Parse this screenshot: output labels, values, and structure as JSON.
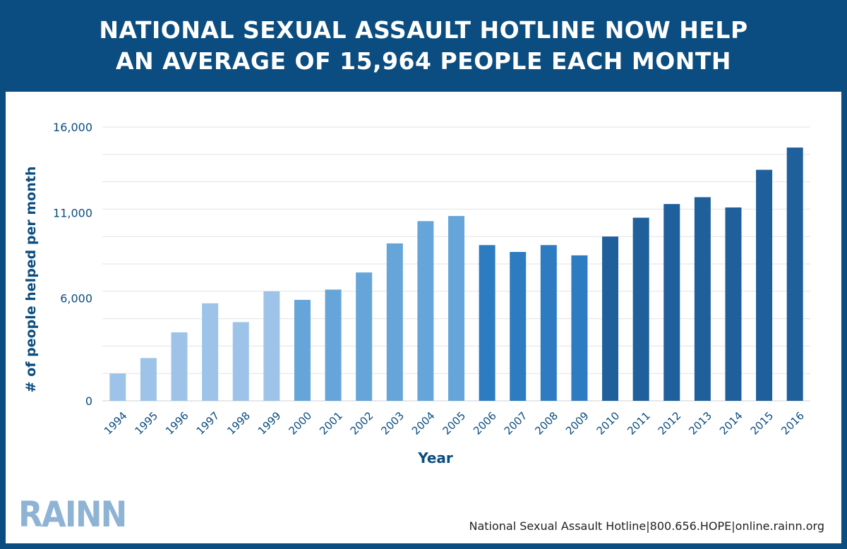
{
  "header": {
    "title_line1": "NATIONAL SEXUAL ASSAULT HOTLINE NOW HELP",
    "title_line2": "AN AVERAGE OF 15,964 PEOPLE EACH MONTH"
  },
  "footer": {
    "logo": "RAINN",
    "contact": "National Sexual Assault Hotline|800.656.HOPE|online.rainn.org"
  },
  "colors": {
    "header_bg": "#0b4d80",
    "axis_text": "#0b4d80",
    "bar_light": "#9dc4e8",
    "bar_mid": "#65a5da",
    "bar_strong": "#2d7cc2",
    "bar_dark": "#1f5f9c"
  },
  "chart_data": {
    "type": "bar",
    "title": "NATIONAL SEXUAL ASSAULT HOTLINE NOW HELP AN AVERAGE OF 15,964 PEOPLE EACH MONTH",
    "xlabel": "Year",
    "ylabel": "# of people helped per month",
    "ylim": [
      0,
      16000
    ],
    "yticks": [
      0,
      6000,
      11000,
      16000
    ],
    "ytick_labels": [
      "0",
      "6,000",
      "11,000",
      "16,000"
    ],
    "grid": true,
    "categories": [
      "1994",
      "1995",
      "1996",
      "1997",
      "1998",
      "1999",
      "2000",
      "2001",
      "2002",
      "2003",
      "2004",
      "2005",
      "2006",
      "2007",
      "2008",
      "2009",
      "2010",
      "2011",
      "2012",
      "2013",
      "2014",
      "2015",
      "2016"
    ],
    "values": [
      1600,
      2500,
      4000,
      5700,
      4600,
      6400,
      5900,
      6500,
      7500,
      9200,
      10500,
      10800,
      9100,
      8700,
      9100,
      8500,
      9600,
      10700,
      11500,
      11900,
      11300,
      13500,
      14800
    ],
    "bar_color_groups": [
      "light",
      "light",
      "light",
      "light",
      "light",
      "light",
      "mid",
      "mid",
      "mid",
      "mid",
      "mid",
      "mid",
      "strong",
      "strong",
      "strong",
      "strong",
      "dark",
      "dark",
      "dark",
      "dark",
      "dark",
      "dark",
      "dark"
    ]
  }
}
